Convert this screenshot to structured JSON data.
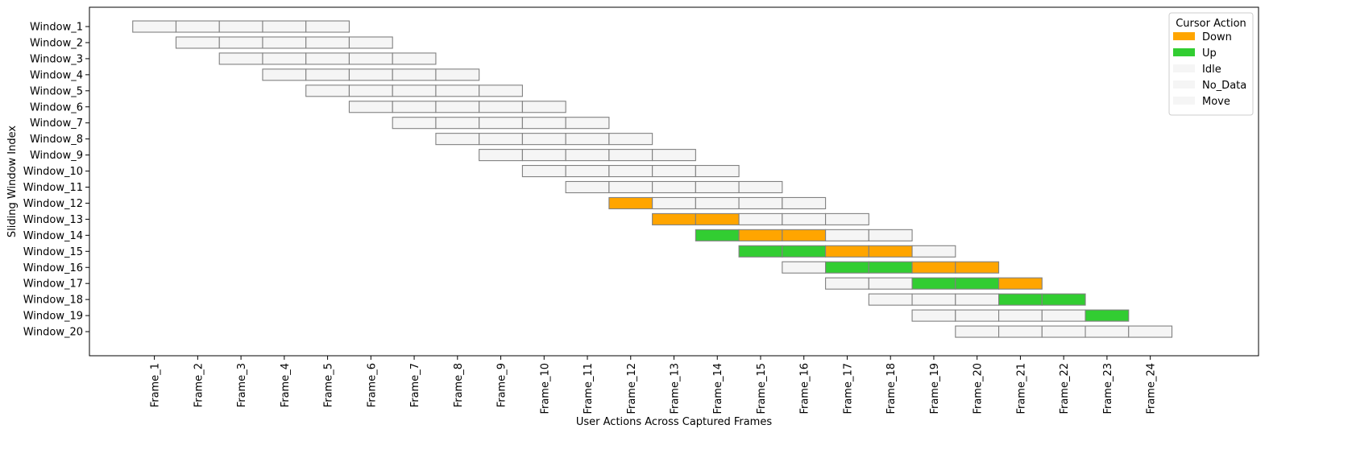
{
  "chart_data": {
    "type": "heatmap",
    "title": "",
    "xlabel": "User Actions Across Captured Frames",
    "ylabel": "Sliding Window Index",
    "x_categories": [
      "Frame_1",
      "Frame_2",
      "Frame_3",
      "Frame_4",
      "Frame_5",
      "Frame_6",
      "Frame_7",
      "Frame_8",
      "Frame_9",
      "Frame_10",
      "Frame_11",
      "Frame_12",
      "Frame_13",
      "Frame_14",
      "Frame_15",
      "Frame_16",
      "Frame_17",
      "Frame_18",
      "Frame_19",
      "Frame_20",
      "Frame_21",
      "Frame_22",
      "Frame_23",
      "Frame_24"
    ],
    "y_categories": [
      "Window_1",
      "Window_2",
      "Window_3",
      "Window_4",
      "Window_5",
      "Window_6",
      "Window_7",
      "Window_8",
      "Window_9",
      "Window_10",
      "Window_11",
      "Window_12",
      "Window_13",
      "Window_14",
      "Window_15",
      "Window_16",
      "Window_17",
      "Window_18",
      "Window_19",
      "Window_20"
    ],
    "window_size": 5,
    "window_start_offset": -0.5,
    "window_start_step": 1,
    "windows": [
      {
        "window": "Window_1",
        "actions": [
          "Idle",
          "Idle",
          "Idle",
          "Idle",
          "Idle"
        ]
      },
      {
        "window": "Window_2",
        "actions": [
          "Idle",
          "Idle",
          "Idle",
          "Idle",
          "Idle"
        ]
      },
      {
        "window": "Window_3",
        "actions": [
          "Idle",
          "Idle",
          "Idle",
          "Idle",
          "Idle"
        ]
      },
      {
        "window": "Window_4",
        "actions": [
          "Idle",
          "Idle",
          "Idle",
          "Idle",
          "Idle"
        ]
      },
      {
        "window": "Window_5",
        "actions": [
          "Idle",
          "Idle",
          "Idle",
          "Idle",
          "Idle"
        ]
      },
      {
        "window": "Window_6",
        "actions": [
          "Idle",
          "Idle",
          "Idle",
          "Idle",
          "Idle"
        ]
      },
      {
        "window": "Window_7",
        "actions": [
          "Idle",
          "Idle",
          "Idle",
          "Idle",
          "Idle"
        ]
      },
      {
        "window": "Window_8",
        "actions": [
          "Idle",
          "Idle",
          "Idle",
          "Idle",
          "Idle"
        ]
      },
      {
        "window": "Window_9",
        "actions": [
          "Idle",
          "Idle",
          "Idle",
          "Idle",
          "Idle"
        ]
      },
      {
        "window": "Window_10",
        "actions": [
          "Idle",
          "Idle",
          "Idle",
          "Idle",
          "Idle"
        ]
      },
      {
        "window": "Window_11",
        "actions": [
          "Idle",
          "Idle",
          "Idle",
          "Idle",
          "Idle"
        ]
      },
      {
        "window": "Window_12",
        "actions": [
          "Down",
          "Idle",
          "Idle",
          "Idle",
          "Idle"
        ]
      },
      {
        "window": "Window_13",
        "actions": [
          "Down",
          "Down",
          "Idle",
          "Idle",
          "Idle"
        ]
      },
      {
        "window": "Window_14",
        "actions": [
          "Up",
          "Down",
          "Down",
          "Idle",
          "Idle"
        ]
      },
      {
        "window": "Window_15",
        "actions": [
          "Up",
          "Up",
          "Down",
          "Down",
          "Idle"
        ]
      },
      {
        "window": "Window_16",
        "actions": [
          "Idle",
          "Up",
          "Up",
          "Down",
          "Down"
        ]
      },
      {
        "window": "Window_17",
        "actions": [
          "Idle",
          "Idle",
          "Up",
          "Up",
          "Down"
        ]
      },
      {
        "window": "Window_18",
        "actions": [
          "Idle",
          "Idle",
          "Idle",
          "Up",
          "Up"
        ]
      },
      {
        "window": "Window_19",
        "actions": [
          "Idle",
          "Idle",
          "Idle",
          "Idle",
          "Up"
        ]
      },
      {
        "window": "Window_20",
        "actions": [
          "Idle",
          "Idle",
          "Idle",
          "Idle",
          "Idle"
        ]
      }
    ],
    "legend": {
      "title": "Cursor Action",
      "placement": "top-right",
      "entries": [
        {
          "label": "Down",
          "color": "#ffa500"
        },
        {
          "label": "Up",
          "color": "#32cd32"
        },
        {
          "label": "Idle",
          "color": "#f5f5f5"
        },
        {
          "label": "No_Data",
          "color": "#f5f5f5"
        },
        {
          "label": "Move",
          "color": "#f5f5f5"
        }
      ]
    },
    "colors": {
      "Down": "#ffa500",
      "Up": "#32cd32",
      "Idle": "#f5f5f5",
      "No_Data": "#f5f5f5",
      "Move": "#f5f5f5",
      "cell_edge": "#808080"
    },
    "xlim": [
      -1.5,
      25.5
    ],
    "grid": false
  }
}
